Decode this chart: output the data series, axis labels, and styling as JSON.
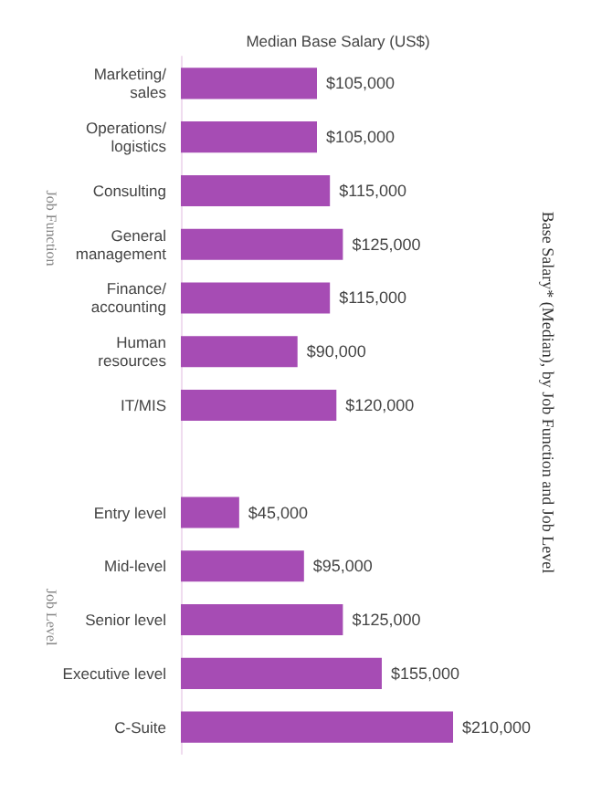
{
  "chart_data": {
    "type": "bar",
    "orientation": "horizontal",
    "title": "Base Salary* (Median), by Job Function and Job Level",
    "xlabel": "Median Base Salary (US$)",
    "annotations": [
      "Job Function",
      "Job Level"
    ],
    "categories": [
      "Marketing/\nsales",
      "Operations/\nlogistics",
      "Consulting",
      "General\nmanagement",
      "Finance/\naccounting",
      "Human\nresources",
      "IT/MIS",
      null,
      "Entry level",
      "Mid-level",
      "Senior level",
      "Executive level",
      "C-Suite"
    ],
    "values": [
      105000,
      105000,
      115000,
      125000,
      115000,
      90000,
      120000,
      null,
      45000,
      95000,
      125000,
      155000,
      210000
    ],
    "value_labels": [
      "$105,000",
      "$105,000",
      "$115,000",
      "$125,000",
      "$115,000",
      "$90,000",
      "$120,000",
      null,
      "$45,000",
      "$95,000",
      "$125,000",
      "$155,000",
      "$210,000"
    ],
    "color": "#a64cb4",
    "grid": false
  }
}
